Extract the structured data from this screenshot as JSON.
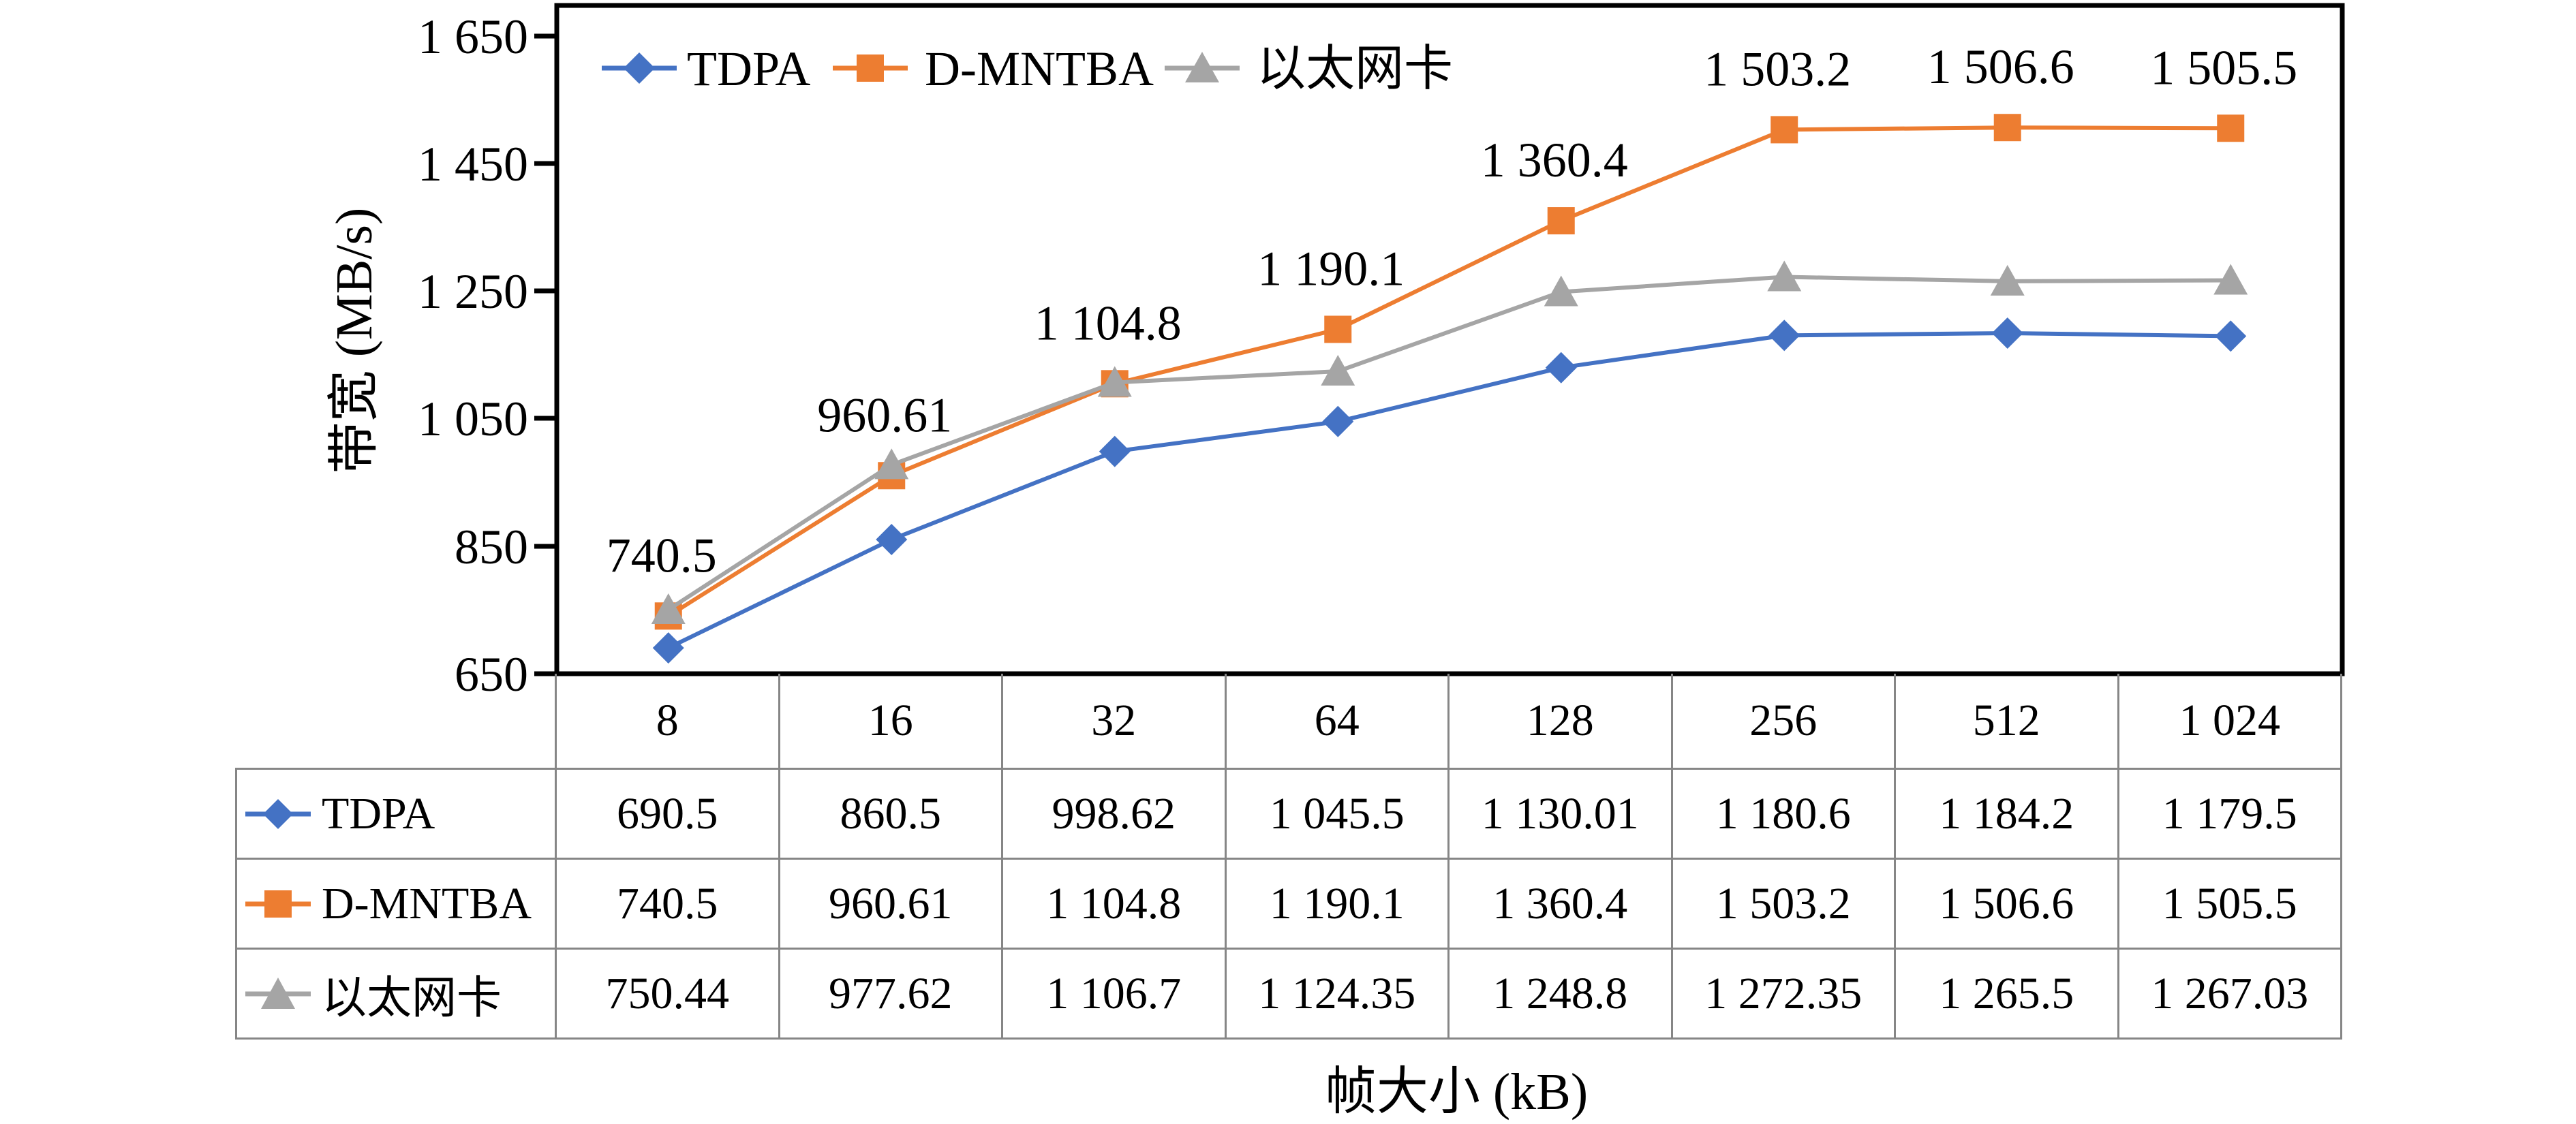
{
  "figure": {
    "y_axis_title": "带宽 (MB/s)",
    "x_axis_title": "帧大小 (kB)",
    "y_tick_labels": [
      "1 650",
      "1 450",
      "1 250",
      "1 050",
      "850",
      "650"
    ]
  },
  "chart_data": {
    "type": "line",
    "title": "",
    "xlabel": "帧大小 (kB)",
    "ylabel": "带宽 (MB/s)",
    "categories": [
      8,
      16,
      32,
      64,
      128,
      256,
      512,
      1024
    ],
    "category_labels": [
      "8",
      "16",
      "32",
      "64",
      "128",
      "256",
      "512",
      "1 024"
    ],
    "ylim": [
      650,
      1650
    ],
    "y_tick_interval": 200,
    "grid": false,
    "legend_position": "top-left-inside",
    "series": [
      {
        "name": "TDPA",
        "color": "#4472C4",
        "marker": "diamond",
        "values": [
          690.5,
          860.5,
          998.62,
          1045.5,
          1130.01,
          1180.6,
          1184.2,
          1179.5
        ]
      },
      {
        "name": "D-MNTBA",
        "color": "#ED7D31",
        "marker": "square",
        "values": [
          740.5,
          960.61,
          1104.8,
          1190.1,
          1360.4,
          1503.2,
          1506.6,
          1505.5
        ],
        "point_labels": [
          "740.5",
          "960.61",
          "1 104.8",
          "1 190.1",
          "1 360.4",
          "1 503.2",
          "1 506.6",
          "1 505.5"
        ]
      },
      {
        "name": "以太网卡",
        "color": "#A5A5A5",
        "marker": "triangle",
        "values": [
          750.44,
          977.62,
          1106.7,
          1124.35,
          1248.8,
          1272.35,
          1265.5,
          1267.03
        ]
      }
    ]
  },
  "table": {
    "header_labels": [
      "8",
      "16",
      "32",
      "64",
      "128",
      "256",
      "512",
      "1 024"
    ],
    "rows": [
      {
        "label": "TDPA",
        "color": "#4472C4",
        "marker": "diamond",
        "values": [
          "690.5",
          "860.5",
          "998.62",
          "1 045.5",
          "1 130.01",
          "1 180.6",
          "1 184.2",
          "1 179.5"
        ]
      },
      {
        "label": "D-MNTBA",
        "color": "#ED7D31",
        "marker": "square",
        "values": [
          "740.5",
          "960.61",
          "1 104.8",
          "1 190.1",
          "1 360.4",
          "1 503.2",
          "1 506.6",
          "1 505.5"
        ]
      },
      {
        "label": "以太网卡",
        "color": "#A5A5A5",
        "marker": "triangle",
        "values": [
          "750.44",
          "977.62",
          "1 106.7",
          "1 124.35",
          "1 248.8",
          "1 272.35",
          "1 265.5",
          "1 267.03"
        ]
      }
    ]
  },
  "colors": {
    "axis": "#000000",
    "table_grid": "#868686",
    "text": "#000000",
    "background": "#FFFFFF"
  }
}
